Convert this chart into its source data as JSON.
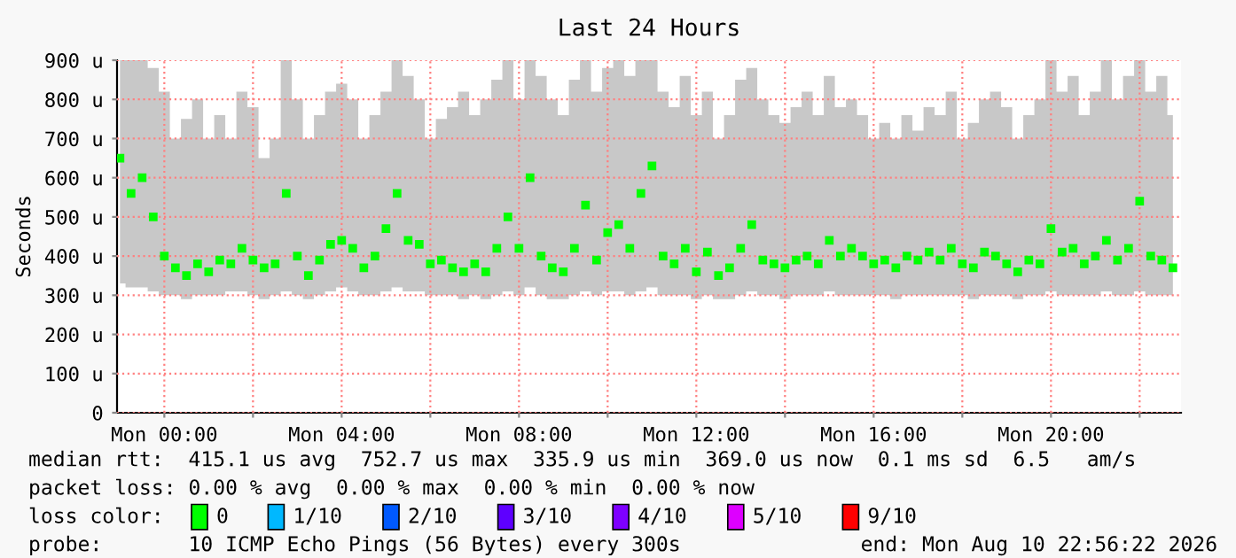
{
  "chart_data": {
    "type": "scatter",
    "title": "Last 24 Hours",
    "ylabel": "Seconds",
    "x": [
      "2026-08-09T23:00",
      "2026-08-09T23:15",
      "2026-08-09T23:30",
      "2026-08-09T23:45",
      "2026-08-10T00:00",
      "2026-08-10T00:15",
      "2026-08-10T00:30",
      "2026-08-10T00:45",
      "2026-08-10T01:00",
      "2026-08-10T01:15",
      "2026-08-10T01:30",
      "2026-08-10T01:45",
      "2026-08-10T02:00",
      "2026-08-10T02:15",
      "2026-08-10T02:30",
      "2026-08-10T02:45",
      "2026-08-10T03:00",
      "2026-08-10T03:15",
      "2026-08-10T03:30",
      "2026-08-10T03:45",
      "2026-08-10T04:00",
      "2026-08-10T04:15",
      "2026-08-10T04:30",
      "2026-08-10T04:45",
      "2026-08-10T05:00",
      "2026-08-10T05:15",
      "2026-08-10T05:30",
      "2026-08-10T05:45",
      "2026-08-10T06:00",
      "2026-08-10T06:15",
      "2026-08-10T06:30",
      "2026-08-10T06:45",
      "2026-08-10T07:00",
      "2026-08-10T07:15",
      "2026-08-10T07:30",
      "2026-08-10T07:45",
      "2026-08-10T08:00",
      "2026-08-10T08:15",
      "2026-08-10T08:30",
      "2026-08-10T08:45",
      "2026-08-10T09:00",
      "2026-08-10T09:15",
      "2026-08-10T09:30",
      "2026-08-10T09:45",
      "2026-08-10T10:00",
      "2026-08-10T10:15",
      "2026-08-10T10:30",
      "2026-08-10T10:45",
      "2026-08-10T11:00",
      "2026-08-10T11:15",
      "2026-08-10T11:30",
      "2026-08-10T11:45",
      "2026-08-10T12:00",
      "2026-08-10T12:15",
      "2026-08-10T12:30",
      "2026-08-10T12:45",
      "2026-08-10T13:00",
      "2026-08-10T13:15",
      "2026-08-10T13:30",
      "2026-08-10T13:45",
      "2026-08-10T14:00",
      "2026-08-10T14:15",
      "2026-08-10T14:30",
      "2026-08-10T14:45",
      "2026-08-10T15:00",
      "2026-08-10T15:15",
      "2026-08-10T15:30",
      "2026-08-10T15:45",
      "2026-08-10T16:00",
      "2026-08-10T16:15",
      "2026-08-10T16:30",
      "2026-08-10T16:45",
      "2026-08-10T17:00",
      "2026-08-10T17:15",
      "2026-08-10T17:30",
      "2026-08-10T17:45",
      "2026-08-10T18:00",
      "2026-08-10T18:15",
      "2026-08-10T18:30",
      "2026-08-10T18:45",
      "2026-08-10T19:00",
      "2026-08-10T19:15",
      "2026-08-10T19:30",
      "2026-08-10T19:45",
      "2026-08-10T20:00",
      "2026-08-10T20:15",
      "2026-08-10T20:30",
      "2026-08-10T20:45",
      "2026-08-10T21:00",
      "2026-08-10T21:15",
      "2026-08-10T21:30",
      "2026-08-10T21:45",
      "2026-08-10T22:00",
      "2026-08-10T22:15",
      "2026-08-10T22:30",
      "2026-08-10T22:45"
    ],
    "series": [
      {
        "name": "0",
        "color": "#00ff00",
        "values": [
          650,
          560,
          600,
          500,
          400,
          370,
          350,
          380,
          360,
          390,
          380,
          420,
          390,
          370,
          380,
          560,
          400,
          350,
          390,
          430,
          440,
          420,
          370,
          400,
          470,
          560,
          440,
          430,
          380,
          390,
          370,
          360,
          380,
          360,
          420,
          500,
          420,
          600,
          400,
          370,
          360,
          420,
          530,
          390,
          460,
          480,
          420,
          560,
          630,
          400,
          380,
          420,
          360,
          410,
          350,
          370,
          420,
          480,
          390,
          380,
          370,
          390,
          400,
          380,
          440,
          400,
          420,
          400,
          380,
          390,
          370,
          400,
          390,
          410,
          390,
          420,
          380,
          370,
          410,
          400,
          380,
          360,
          390,
          380,
          470,
          410,
          420,
          380,
          400,
          440,
          390,
          420,
          540,
          400,
          390,
          370
        ],
        "lower": [
          330,
          320,
          320,
          310,
          300,
          300,
          290,
          300,
          300,
          300,
          310,
          310,
          300,
          290,
          300,
          310,
          300,
          290,
          300,
          310,
          320,
          310,
          300,
          300,
          310,
          320,
          310,
          310,
          300,
          300,
          300,
          290,
          300,
          290,
          300,
          310,
          300,
          320,
          300,
          290,
          290,
          300,
          310,
          300,
          310,
          310,
          300,
          310,
          320,
          300,
          300,
          300,
          290,
          300,
          290,
          290,
          300,
          310,
          300,
          300,
          290,
          300,
          300,
          300,
          310,
          300,
          300,
          300,
          300,
          300,
          290,
          300,
          300,
          300,
          300,
          300,
          300,
          290,
          300,
          300,
          300,
          290,
          300,
          300,
          310,
          300,
          300,
          300,
          300,
          310,
          300,
          300,
          310,
          300,
          300,
          300
        ],
        "upper": [
          900,
          900,
          900,
          880,
          820,
          700,
          750,
          800,
          700,
          760,
          700,
          820,
          780,
          650,
          700,
          900,
          800,
          700,
          760,
          820,
          840,
          800,
          700,
          760,
          820,
          900,
          860,
          800,
          700,
          750,
          780,
          820,
          760,
          800,
          850,
          900,
          800,
          900,
          860,
          800,
          760,
          850,
          900,
          820,
          880,
          900,
          860,
          900,
          900,
          820,
          780,
          860,
          760,
          820,
          700,
          760,
          850,
          880,
          800,
          760,
          740,
          780,
          820,
          760,
          860,
          780,
          800,
          760,
          700,
          740,
          700,
          760,
          720,
          780,
          760,
          820,
          700,
          740,
          800,
          820,
          780,
          700,
          760,
          800,
          900,
          820,
          860,
          760,
          820,
          900,
          800,
          860,
          900,
          820,
          860,
          760
        ]
      },
      {
        "name": "1/10",
        "color": "#00b8ff",
        "values": [
          null,
          null,
          null,
          null,
          null,
          null,
          null,
          null,
          null,
          null,
          null,
          null,
          null,
          null,
          null,
          null,
          null,
          null,
          null,
          null,
          null,
          null,
          null,
          null,
          null,
          null,
          null,
          null,
          null,
          null,
          null,
          null,
          null,
          null,
          null,
          null,
          null,
          null,
          null,
          null,
          null,
          null,
          null,
          null,
          null,
          null,
          null,
          null,
          null,
          null,
          null,
          null,
          null,
          null,
          null,
          null,
          null,
          null,
          null,
          null,
          null,
          null,
          null,
          null,
          null,
          null,
          null,
          null,
          null,
          null,
          null,
          null,
          null,
          null,
          null,
          null,
          null,
          null,
          null,
          null,
          null,
          null,
          null,
          null,
          null,
          null,
          null,
          null,
          null,
          null,
          null,
          null,
          null,
          null,
          null,
          null
        ]
      },
      {
        "name": "2/10",
        "color": "#0059ff",
        "values": [
          null,
          null,
          null,
          null,
          null,
          null,
          null,
          null,
          null,
          null,
          null,
          null,
          null,
          null,
          null,
          null,
          null,
          null,
          null,
          null,
          null,
          null,
          null,
          null,
          null,
          null,
          null,
          null,
          null,
          null,
          null,
          null,
          null,
          null,
          null,
          null,
          null,
          null,
          null,
          null,
          null,
          null,
          null,
          null,
          null,
          null,
          null,
          null,
          null,
          null,
          null,
          null,
          null,
          null,
          null,
          null,
          null,
          null,
          null,
          null,
          null,
          null,
          null,
          null,
          null,
          null,
          null,
          null,
          null,
          null,
          null,
          null,
          null,
          null,
          null,
          null,
          null,
          null,
          null,
          null,
          null,
          null,
          null,
          null,
          null,
          null,
          null,
          null,
          null,
          null,
          null,
          null,
          null,
          null,
          null,
          null
        ]
      },
      {
        "name": "3/10",
        "color": "#5e00ff",
        "values": [
          null,
          null,
          null,
          null,
          null,
          null,
          null,
          null,
          null,
          null,
          null,
          null,
          null,
          null,
          null,
          null,
          null,
          null,
          null,
          null,
          null,
          null,
          null,
          null,
          null,
          null,
          null,
          null,
          null,
          null,
          null,
          null,
          null,
          null,
          null,
          null,
          null,
          null,
          null,
          null,
          null,
          null,
          null,
          null,
          null,
          null,
          null,
          null,
          null,
          null,
          null,
          null,
          null,
          null,
          null,
          null,
          null,
          null,
          null,
          null,
          null,
          null,
          null,
          null,
          null,
          null,
          null,
          null,
          null,
          null,
          null,
          null,
          null,
          null,
          null,
          null,
          null,
          null,
          null,
          null,
          null,
          null,
          null,
          null,
          null,
          null,
          null,
          null,
          null,
          null,
          null,
          null,
          null,
          null,
          null,
          null
        ]
      },
      {
        "name": "4/10",
        "color": "#7e00ff",
        "values": [
          null,
          null,
          null,
          null,
          null,
          null,
          null,
          null,
          null,
          null,
          null,
          null,
          null,
          null,
          null,
          null,
          null,
          null,
          null,
          null,
          null,
          null,
          null,
          null,
          null,
          null,
          null,
          null,
          null,
          null,
          null,
          null,
          null,
          null,
          null,
          null,
          null,
          null,
          null,
          null,
          null,
          null,
          null,
          null,
          null,
          null,
          null,
          null,
          null,
          null,
          null,
          null,
          null,
          null,
          null,
          null,
          null,
          null,
          null,
          null,
          null,
          null,
          null,
          null,
          null,
          null,
          null,
          null,
          null,
          null,
          null,
          null,
          null,
          null,
          null,
          null,
          null,
          null,
          null,
          null,
          null,
          null,
          null,
          null,
          null,
          null,
          null,
          null,
          null,
          null,
          null,
          null,
          null,
          null,
          null,
          null
        ]
      },
      {
        "name": "5/10",
        "color": "#dd00ff",
        "values": [
          null,
          null,
          null,
          null,
          null,
          null,
          null,
          null,
          null,
          null,
          null,
          null,
          null,
          null,
          null,
          null,
          null,
          null,
          null,
          null,
          null,
          null,
          null,
          null,
          null,
          null,
          null,
          null,
          null,
          null,
          null,
          null,
          null,
          null,
          null,
          null,
          null,
          null,
          null,
          null,
          null,
          null,
          null,
          null,
          null,
          null,
          null,
          null,
          null,
          null,
          null,
          null,
          null,
          null,
          null,
          null,
          null,
          null,
          null,
          null,
          null,
          null,
          null,
          null,
          null,
          null,
          null,
          null,
          null,
          null,
          null,
          null,
          null,
          null,
          null,
          null,
          null,
          null,
          null,
          null,
          null,
          null,
          null,
          null,
          null,
          null,
          null,
          null,
          null,
          null,
          null,
          null,
          null,
          null,
          null,
          null
        ]
      },
      {
        "name": "9/10",
        "color": "#ff0000",
        "values": [
          null,
          null,
          null,
          null,
          null,
          null,
          null,
          null,
          null,
          null,
          null,
          null,
          null,
          null,
          null,
          null,
          null,
          null,
          null,
          null,
          null,
          null,
          null,
          null,
          null,
          null,
          null,
          null,
          null,
          null,
          null,
          null,
          null,
          null,
          null,
          null,
          null,
          null,
          null,
          null,
          null,
          null,
          null,
          null,
          null,
          null,
          null,
          null,
          null,
          null,
          null,
          null,
          null,
          null,
          null,
          null,
          null,
          null,
          null,
          null,
          null,
          null,
          null,
          null,
          null,
          null,
          null,
          null,
          null,
          null,
          null,
          null,
          null,
          null,
          null,
          null,
          null,
          null,
          null,
          null,
          null,
          null,
          null,
          null,
          null,
          null,
          null,
          null,
          null,
          null,
          null,
          null,
          null,
          null,
          null,
          null
        ]
      }
    ],
    "marker": "square",
    "legend": "bottom",
    "legend_title": "loss color:",
    "grid": true,
    "xlim": [
      "2026-08-09T22:56",
      "2026-08-10T22:56"
    ],
    "xticks": [
      {
        "value": "2026-08-10T00:00",
        "label": "Mon 00:00"
      },
      {
        "value": "2026-08-10T02:00",
        "label": null
      },
      {
        "value": "2026-08-10T04:00",
        "label": "Mon 04:00"
      },
      {
        "value": "2026-08-10T06:00",
        "label": null
      },
      {
        "value": "2026-08-10T08:00",
        "label": "Mon 08:00"
      },
      {
        "value": "2026-08-10T10:00",
        "label": null
      },
      {
        "value": "2026-08-10T12:00",
        "label": "Mon 12:00"
      },
      {
        "value": "2026-08-10T14:00",
        "label": null
      },
      {
        "value": "2026-08-10T16:00",
        "label": "Mon 16:00"
      },
      {
        "value": "2026-08-10T18:00",
        "label": null
      },
      {
        "value": "2026-08-10T20:00",
        "label": "Mon 20:00"
      },
      {
        "value": "2026-08-10T22:00",
        "label": null
      }
    ],
    "ylim": [
      0,
      900
    ],
    "yticks": [
      0,
      {
        "value": 100,
        "label": "100 u"
      },
      {
        "value": 200,
        "label": "200 u"
      },
      {
        "value": 300,
        "label": "300 u"
      },
      {
        "value": 400,
        "label": "400 u"
      },
      {
        "value": 500,
        "label": "500 u"
      },
      {
        "value": 600,
        "label": "600 u"
      },
      {
        "value": 700,
        "label": "700 u"
      },
      {
        "value": 800,
        "label": "800 u"
      },
      {
        "value": 900,
        "label": "900 u"
      }
    ],
    "annotations": [
      "median rtt:  415.1 us avg  752.7 us max  335.9 us min  369.0 us now  0.1 ms sd  6.5   am/s",
      "packet loss: 0.00 % avg  0.00 % max  0.00 % min  0.00 % now",
      "probe:       10 ICMP Echo Pings (56 Bytes) every 300s",
      "end: Mon Aug 10 22:56:22 2026"
    ]
  }
}
